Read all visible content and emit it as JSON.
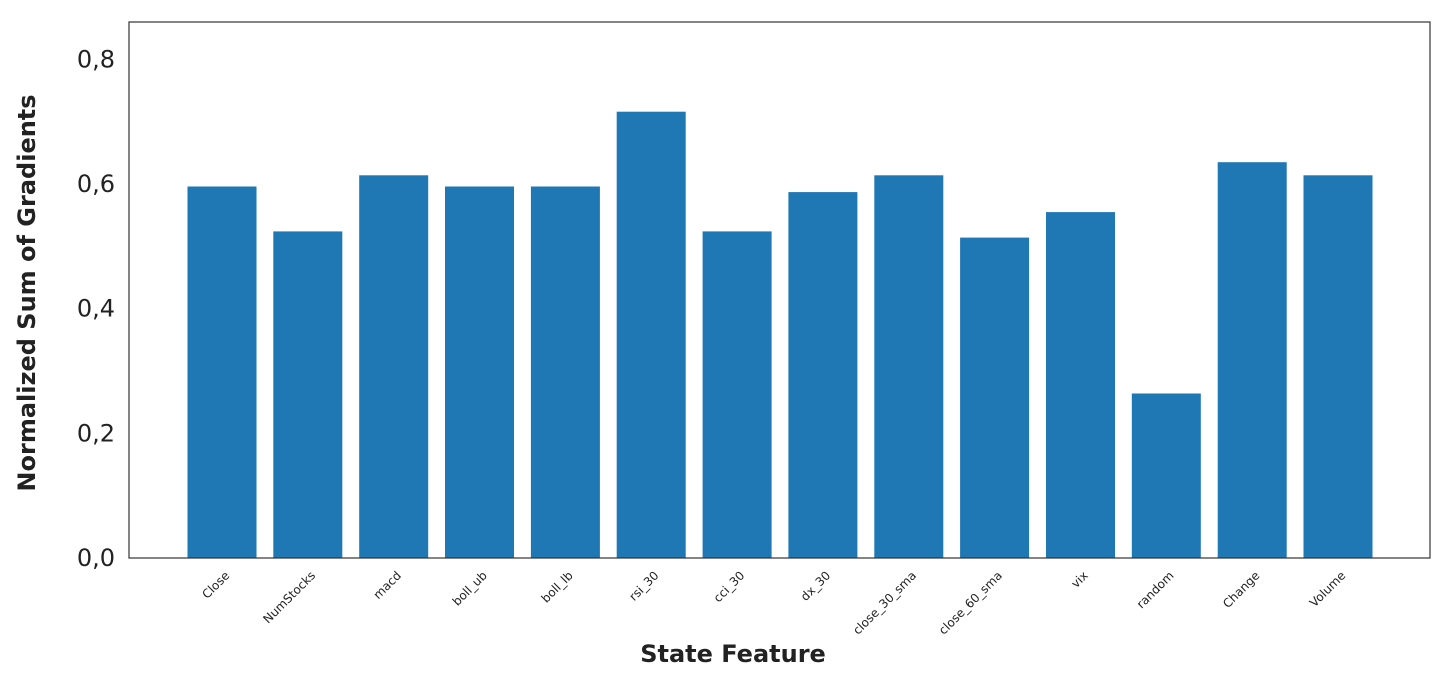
{
  "chart_data": {
    "type": "bar",
    "title": "",
    "xlabel": "State Feature",
    "ylabel": "Normalized Sum of Gradients",
    "categories": [
      "Close",
      "NumStocks",
      "macd",
      "boll_ub",
      "boll_lb",
      "rsi_30",
      "cci_30",
      "dx_30",
      "close_30_sma",
      "close_60_sma",
      "vix",
      "random",
      "Change",
      "Volume"
    ],
    "values": [
      0.596,
      0.524,
      0.614,
      0.596,
      0.596,
      0.716,
      0.524,
      0.587,
      0.614,
      0.514,
      0.555,
      0.264,
      0.635,
      0.614
    ],
    "ylim": [
      0,
      0.86
    ],
    "yticks": [
      0.0,
      0.2,
      0.4,
      0.6,
      0.8
    ],
    "ytick_labels": [
      "0,0",
      "0,2",
      "0,4",
      "0,6",
      "0,8"
    ],
    "bar_color": "#1f77b4",
    "grid": false,
    "legend": "none"
  }
}
